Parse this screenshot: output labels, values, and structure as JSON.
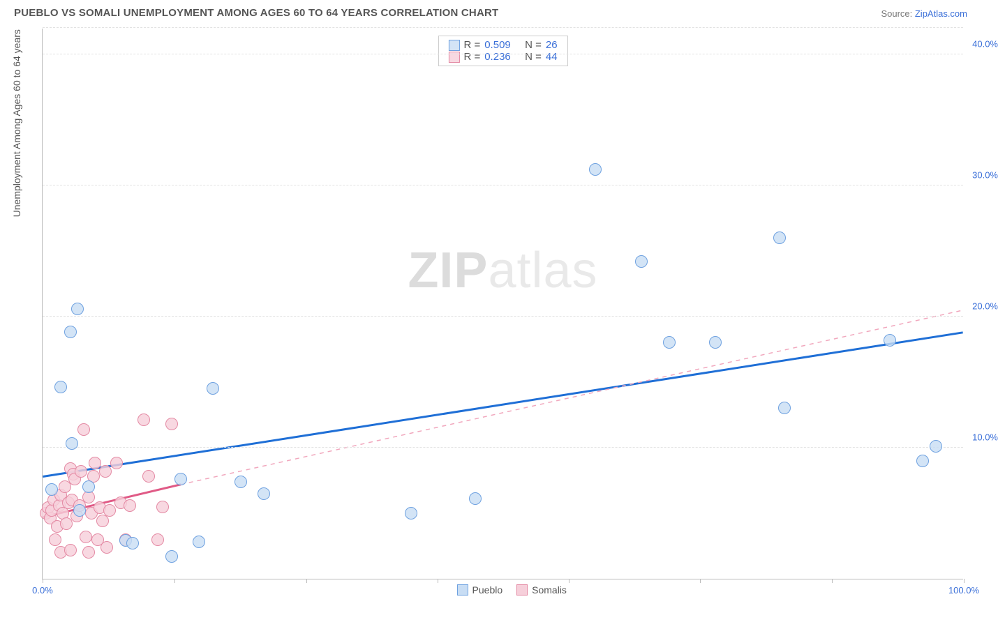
{
  "header": {
    "title": "PUEBLO VS SOMALI UNEMPLOYMENT AMONG AGES 60 TO 64 YEARS CORRELATION CHART",
    "source_label": "Source: ",
    "source_link": "ZipAtlas.com"
  },
  "chart": {
    "type": "scatter",
    "y_label": "Unemployment Among Ages 60 to 64 years",
    "xlim": [
      0,
      100
    ],
    "ylim": [
      0,
      42
    ],
    "x_ticks": [
      0,
      14.3,
      28.6,
      42.9,
      57.1,
      71.4,
      85.7,
      100
    ],
    "x_tick_labels": {
      "0": "0.0%",
      "100": "100.0%"
    },
    "y_gridlines": [
      10,
      20,
      30,
      40,
      42
    ],
    "y_tick_labels": {
      "10": "10.0%",
      "20": "20.0%",
      "30": "30.0%",
      "40": "40.0%"
    },
    "background_color": "#ffffff",
    "grid_color": "#e2e2e2",
    "axis_color": "#bbbbbb",
    "label_color": "#3a6fd8",
    "point_radius": 9,
    "watermark": {
      "bold": "ZIP",
      "rest": "atlas"
    },
    "series": [
      {
        "name": "Pueblo",
        "fill": "#c8ddf4cc",
        "stroke": "#6ea1e0",
        "trend": {
          "x1": 0,
          "y1": 7.8,
          "x2": 100,
          "y2": 18.8,
          "stroke": "#1f6fd6",
          "width": 3,
          "dash": "none"
        },
        "stats": {
          "R": "0.509",
          "N": "26"
        },
        "points": [
          [
            1.0,
            6.8
          ],
          [
            2.0,
            14.6
          ],
          [
            3.0,
            18.8
          ],
          [
            3.8,
            20.6
          ],
          [
            3.2,
            10.3
          ],
          [
            4.0,
            5.2
          ],
          [
            5.0,
            7.0
          ],
          [
            9.0,
            2.9
          ],
          [
            9.8,
            2.7
          ],
          [
            14.0,
            1.7
          ],
          [
            17.0,
            2.8
          ],
          [
            15.0,
            7.6
          ],
          [
            18.5,
            14.5
          ],
          [
            21.5,
            7.4
          ],
          [
            24.0,
            6.5
          ],
          [
            40.0,
            5.0
          ],
          [
            47.0,
            6.1
          ],
          [
            60.0,
            31.2
          ],
          [
            65.0,
            24.2
          ],
          [
            68.0,
            18.0
          ],
          [
            73.0,
            18.0
          ],
          [
            80.0,
            26.0
          ],
          [
            80.5,
            13.0
          ],
          [
            92.0,
            18.2
          ],
          [
            95.5,
            9.0
          ],
          [
            97.0,
            10.1
          ]
        ]
      },
      {
        "name": "Somalis",
        "fill": "#f6cfdacf",
        "stroke": "#e48aa4",
        "trend_solid": {
          "x1": 0,
          "y1": 4.7,
          "x2": 15,
          "y2": 7.2,
          "stroke": "#e05a86",
          "width": 3
        },
        "trend_dash": {
          "x1": 15,
          "y1": 7.2,
          "x2": 100,
          "y2": 20.5,
          "stroke": "#f1a7bd",
          "width": 1.5
        },
        "stats": {
          "R": "0.236",
          "N": "44"
        },
        "points": [
          [
            0.4,
            5.0
          ],
          [
            0.6,
            5.4
          ],
          [
            0.8,
            4.6
          ],
          [
            1.0,
            5.2
          ],
          [
            1.2,
            6.0
          ],
          [
            1.4,
            3.0
          ],
          [
            1.6,
            4.0
          ],
          [
            1.8,
            5.6
          ],
          [
            2.0,
            6.4
          ],
          [
            2.0,
            2.0
          ],
          [
            2.2,
            5.0
          ],
          [
            2.4,
            7.0
          ],
          [
            2.6,
            4.2
          ],
          [
            2.8,
            5.8
          ],
          [
            3.0,
            8.4
          ],
          [
            3.0,
            2.2
          ],
          [
            3.2,
            6.0
          ],
          [
            3.3,
            8.0
          ],
          [
            3.5,
            7.6
          ],
          [
            3.7,
            4.8
          ],
          [
            4.0,
            5.6
          ],
          [
            4.2,
            8.2
          ],
          [
            4.5,
            11.4
          ],
          [
            4.7,
            3.2
          ],
          [
            5.0,
            6.2
          ],
          [
            5.0,
            2.0
          ],
          [
            5.3,
            5.0
          ],
          [
            5.5,
            7.8
          ],
          [
            5.7,
            8.8
          ],
          [
            6.0,
            3.0
          ],
          [
            6.2,
            5.4
          ],
          [
            6.5,
            4.4
          ],
          [
            6.8,
            8.2
          ],
          [
            7.0,
            2.4
          ],
          [
            7.3,
            5.2
          ],
          [
            8.0,
            8.8
          ],
          [
            8.5,
            5.8
          ],
          [
            9.0,
            3.0
          ],
          [
            9.5,
            5.6
          ],
          [
            11.0,
            12.1
          ],
          [
            11.5,
            7.8
          ],
          [
            12.5,
            3.0
          ],
          [
            14.0,
            11.8
          ],
          [
            13.0,
            5.5
          ]
        ]
      }
    ],
    "legend_bottom": [
      {
        "label": "Pueblo",
        "fill": "#c8ddf4",
        "stroke": "#6ea1e0"
      },
      {
        "label": "Somalis",
        "fill": "#f6cfda",
        "stroke": "#e48aa4"
      }
    ]
  }
}
